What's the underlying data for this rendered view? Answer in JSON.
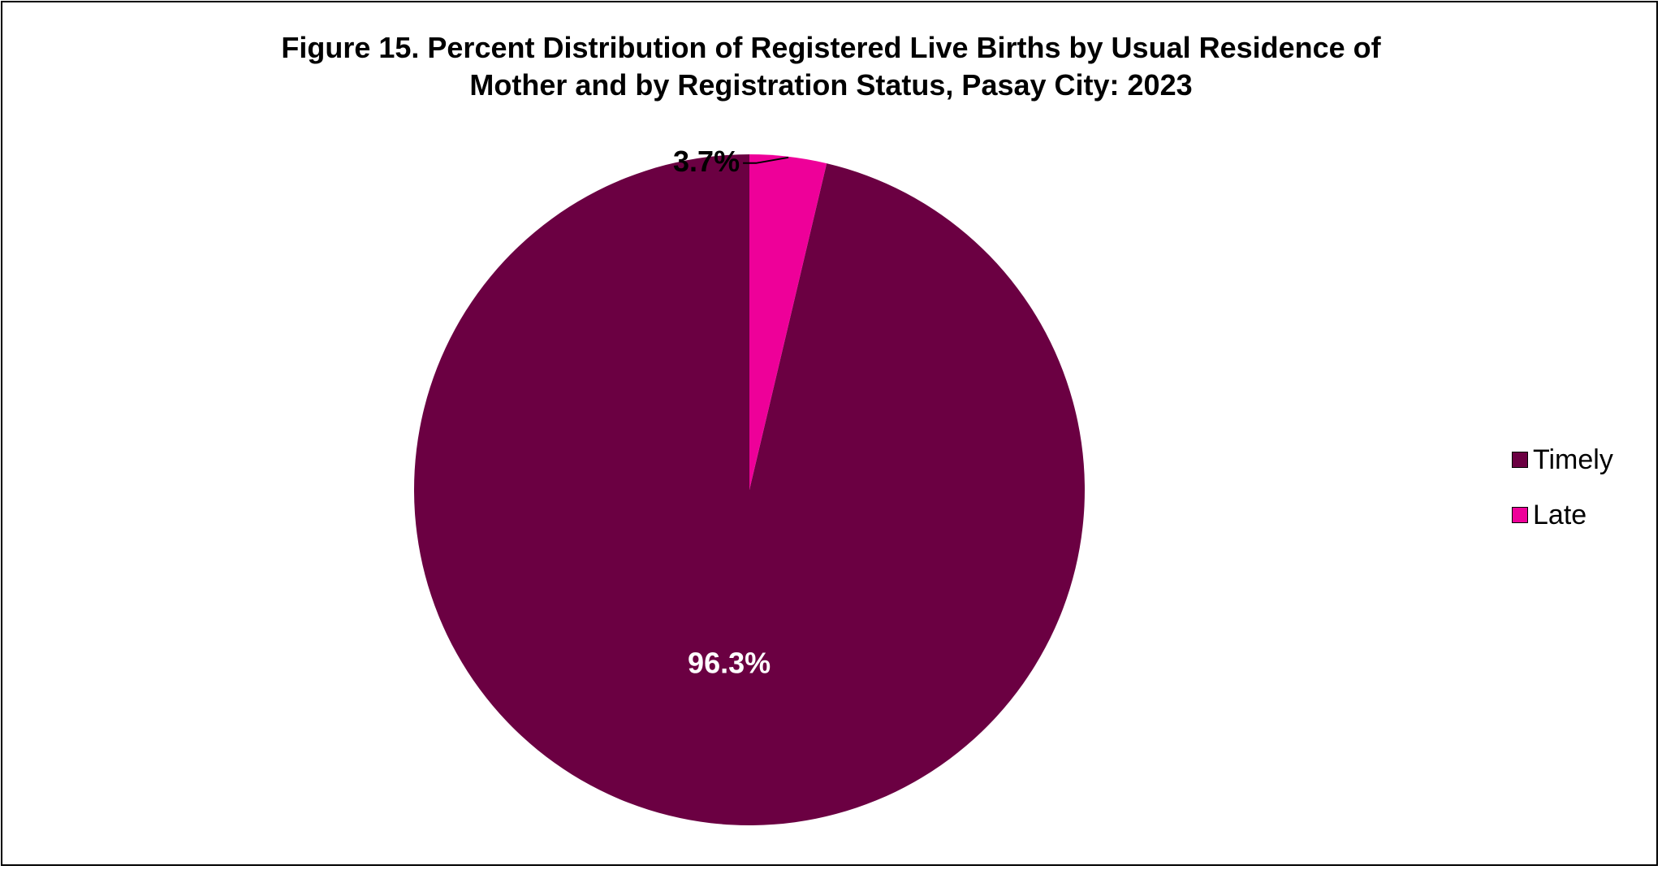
{
  "chart_data": {
    "type": "pie",
    "title_lines": [
      "Figure 15. Percent Distribution of Registered Live Births by Usual Residence of",
      "Mother and by Registration Status, Pasay City: 2023"
    ],
    "slices": [
      {
        "name": "Timely",
        "value": 96.3,
        "label": "96.3%",
        "color": "#6B0042"
      },
      {
        "name": "Late",
        "value": 3.7,
        "label": "3.7%",
        "color": "#EE0099"
      }
    ],
    "legend": {
      "position": "right",
      "items": [
        {
          "label": "Timely",
          "color": "#6B0042"
        },
        {
          "label": "Late",
          "color": "#EE0099"
        }
      ]
    },
    "start_angle": "12 o'clock",
    "direction": "counterclockwise"
  }
}
